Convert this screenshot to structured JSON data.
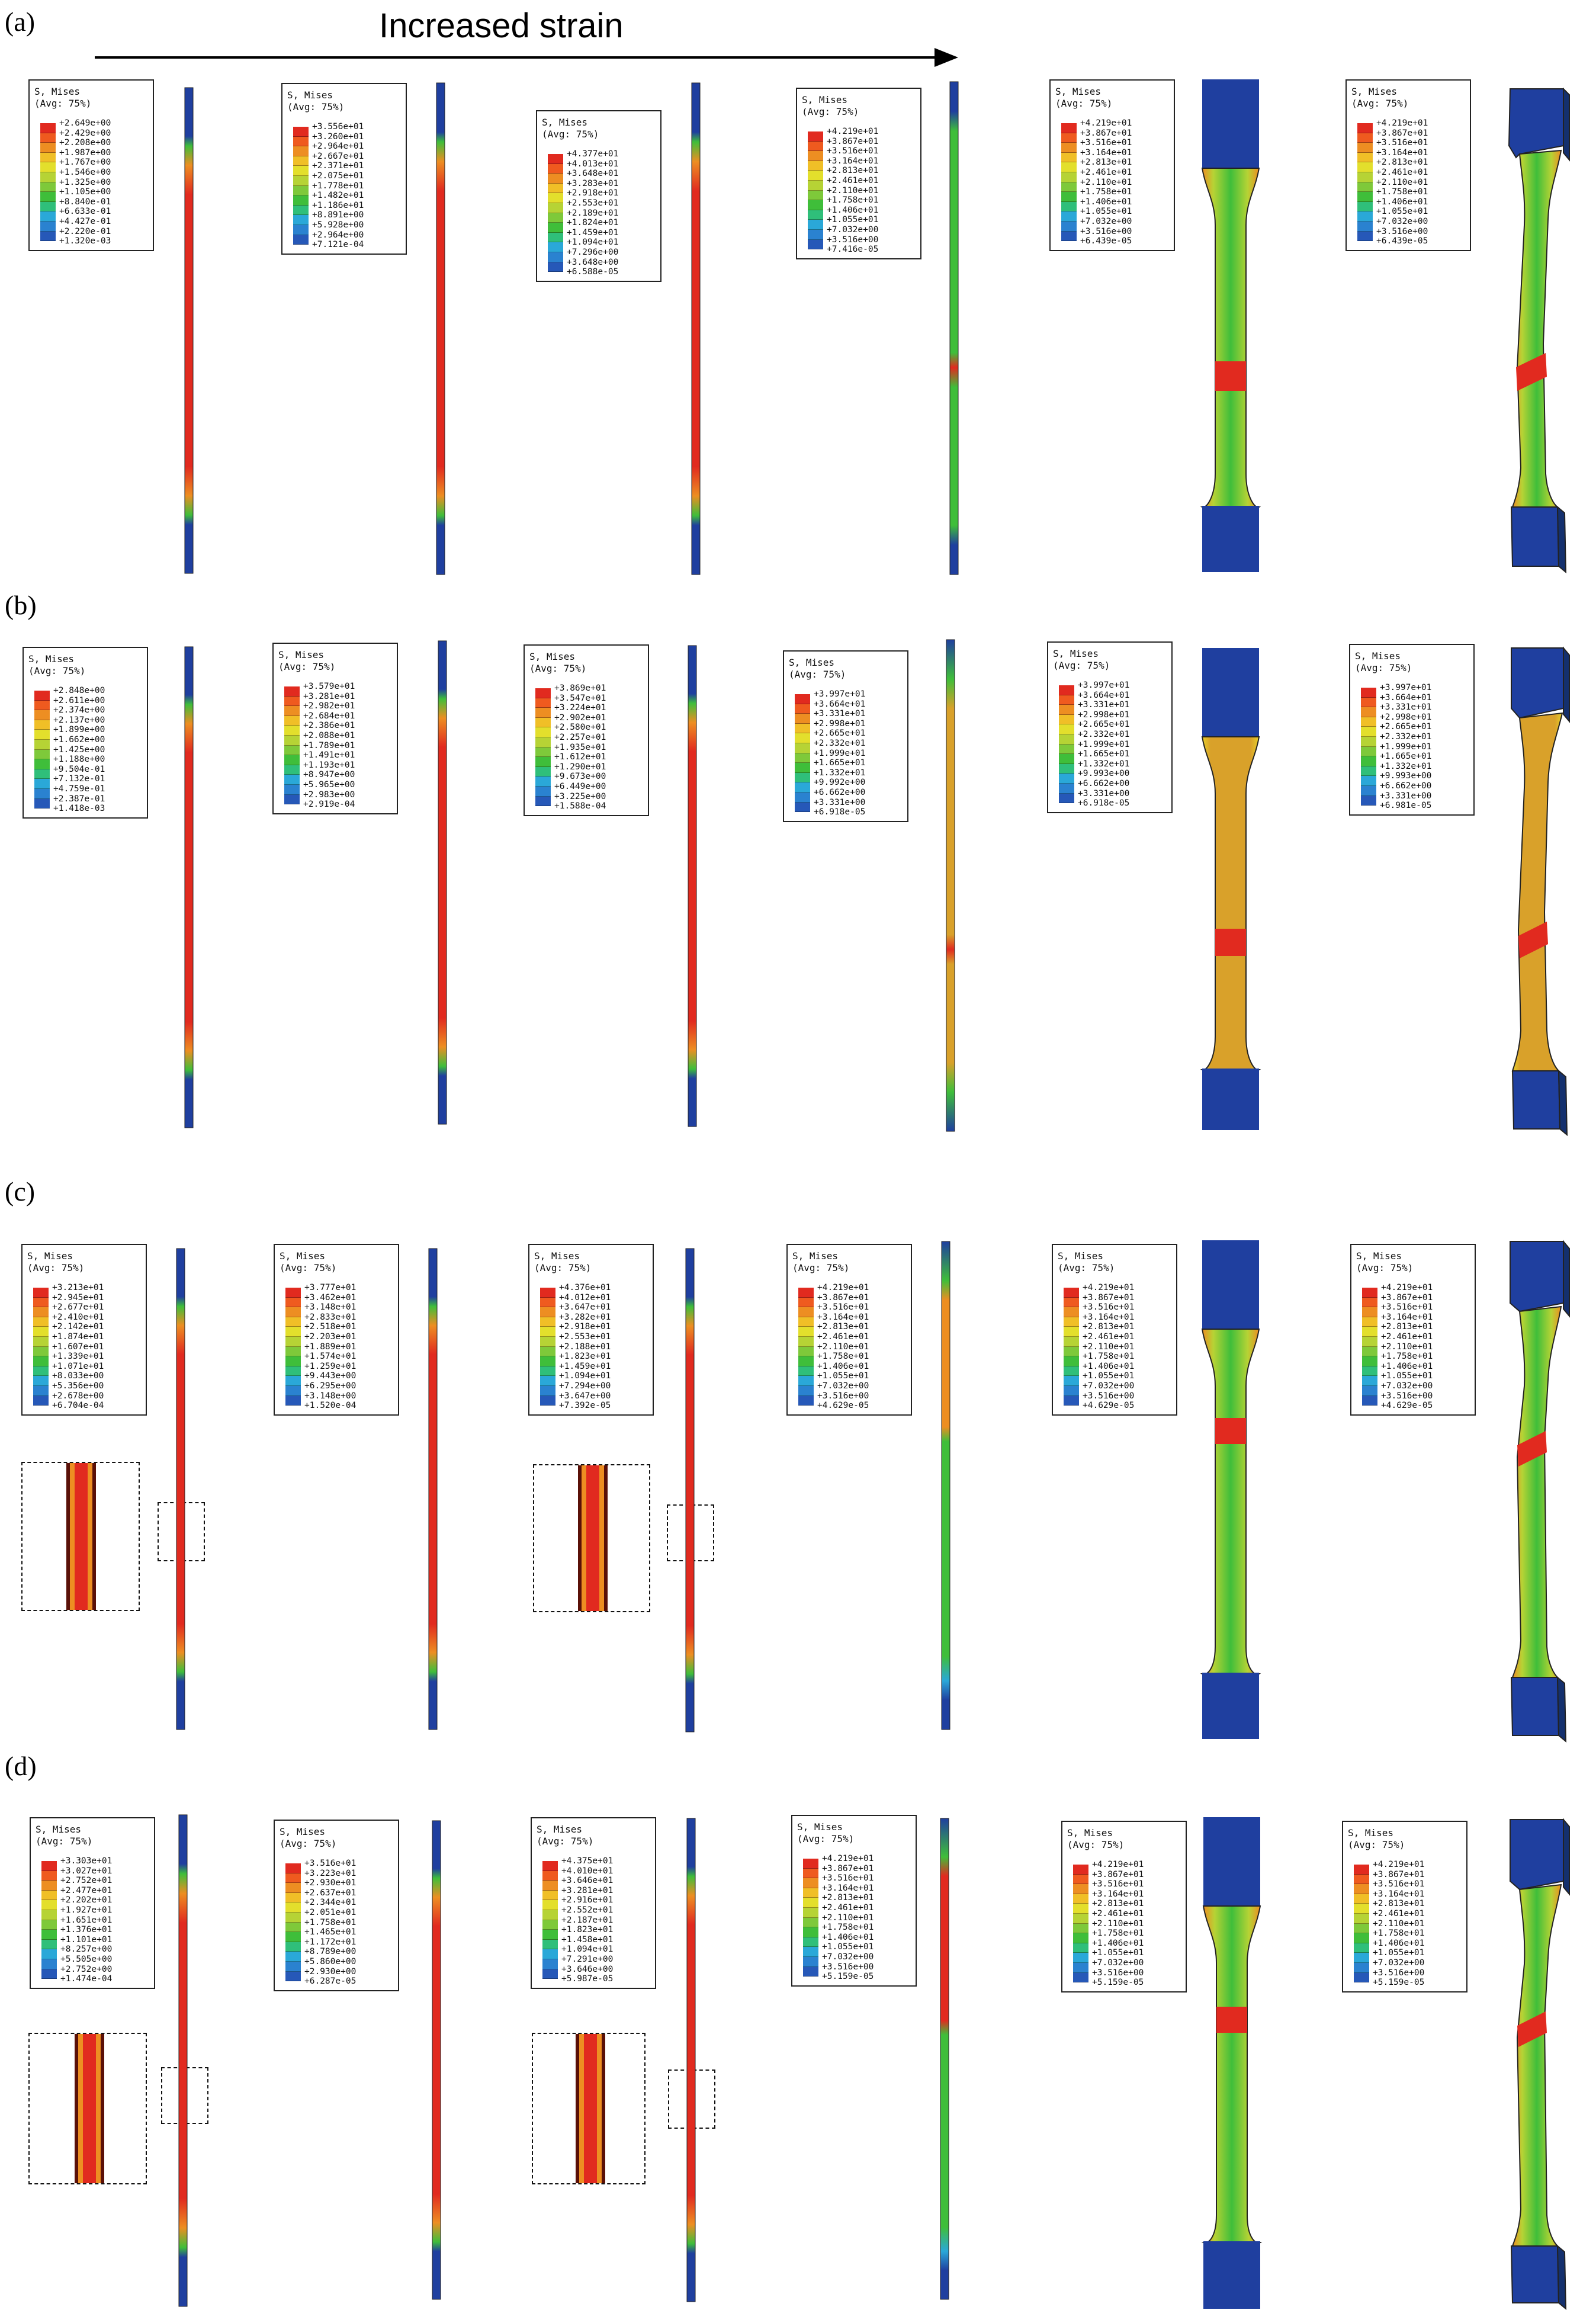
{
  "header": {
    "title": "Increased strain"
  },
  "legend_header": {
    "line1": "S, Mises",
    "line2": "(Avg: 75%)"
  },
  "colors": {
    "blue": "#1f3f9f",
    "cyan": "#2aa8d8",
    "green": "#3fbe3a",
    "yellowgreen": "#b6d335",
    "yellow": "#e8cf2c",
    "orange": "#ed8e22",
    "red": "#e12a1f",
    "darkred": "#b81a14",
    "tan": "#d9a12a"
  },
  "rows": [
    {
      "label": "(a)",
      "legends": [
        [
          "+2.649e+00",
          "+2.429e+00",
          "+2.208e+00",
          "+1.987e+00",
          "+1.767e+00",
          "+1.546e+00",
          "+1.325e+00",
          "+1.105e+00",
          "+8.840e-01",
          "+6.633e-01",
          "+4.427e-01",
          "+2.220e-01",
          "+1.320e-03"
        ],
        [
          "+3.556e+01",
          "+3.260e+01",
          "+2.964e+01",
          "+2.667e+01",
          "+2.371e+01",
          "+2.075e+01",
          "+1.778e+01",
          "+1.482e+01",
          "+1.186e+01",
          "+8.891e+00",
          "+5.928e+00",
          "+2.964e+00",
          "+7.121e-04"
        ],
        [
          "+4.377e+01",
          "+4.013e+01",
          "+3.648e+01",
          "+3.283e+01",
          "+2.918e+01",
          "+2.553e+01",
          "+2.189e+01",
          "+1.824e+01",
          "+1.459e+01",
          "+1.094e+01",
          "+7.296e+00",
          "+3.648e+00",
          "+6.588e-05"
        ],
        [
          "+4.219e+01",
          "+3.867e+01",
          "+3.516e+01",
          "+3.164e+01",
          "+2.813e+01",
          "+2.461e+01",
          "+2.110e+01",
          "+1.758e+01",
          "+1.406e+01",
          "+1.055e+01",
          "+7.032e+00",
          "+3.516e+00",
          "+7.416e-05"
        ],
        [
          "+4.219e+01",
          "+3.867e+01",
          "+3.516e+01",
          "+3.164e+01",
          "+2.813e+01",
          "+2.461e+01",
          "+2.110e+01",
          "+1.758e+01",
          "+1.406e+01",
          "+1.055e+01",
          "+7.032e+00",
          "+3.516e+00",
          "+6.439e-05"
        ],
        [
          "+4.219e+01",
          "+3.867e+01",
          "+3.516e+01",
          "+3.164e+01",
          "+2.813e+01",
          "+2.461e+01",
          "+2.110e+01",
          "+1.758e+01",
          "+1.406e+01",
          "+1.055e+01",
          "+7.032e+00",
          "+3.516e+00",
          "+6.439e-05"
        ]
      ]
    },
    {
      "label": "(b)",
      "legends": [
        [
          "+2.848e+00",
          "+2.611e+00",
          "+2.374e+00",
          "+2.137e+00",
          "+1.899e+00",
          "+1.662e+00",
          "+1.425e+00",
          "+1.188e+00",
          "+9.504e-01",
          "+7.132e-01",
          "+4.759e-01",
          "+2.387e-01",
          "+1.418e-03"
        ],
        [
          "+3.579e+01",
          "+3.281e+01",
          "+2.982e+01",
          "+2.684e+01",
          "+2.386e+01",
          "+2.088e+01",
          "+1.789e+01",
          "+1.491e+01",
          "+1.193e+01",
          "+8.947e+00",
          "+5.965e+00",
          "+2.983e+00",
          "+2.919e-04"
        ],
        [
          "+3.869e+01",
          "+3.547e+01",
          "+3.224e+01",
          "+2.902e+01",
          "+2.580e+01",
          "+2.257e+01",
          "+1.935e+01",
          "+1.612e+01",
          "+1.290e+01",
          "+9.673e+00",
          "+6.449e+00",
          "+3.225e+00",
          "+1.588e-04"
        ],
        [
          "+3.997e+01",
          "+3.664e+01",
          "+3.331e+01",
          "+2.998e+01",
          "+2.665e+01",
          "+2.332e+01",
          "+1.999e+01",
          "+1.665e+01",
          "+1.332e+01",
          "+9.992e+00",
          "+6.662e+00",
          "+3.331e+00",
          "+6.918e-05"
        ],
        [
          "+3.997e+01",
          "+3.664e+01",
          "+3.331e+01",
          "+2.998e+01",
          "+2.665e+01",
          "+2.332e+01",
          "+1.999e+01",
          "+1.665e+01",
          "+1.332e+01",
          "+9.993e+00",
          "+6.662e+00",
          "+3.331e+00",
          "+6.918e-05"
        ],
        [
          "+3.997e+01",
          "+3.664e+01",
          "+3.331e+01",
          "+2.998e+01",
          "+2.665e+01",
          "+2.332e+01",
          "+1.999e+01",
          "+1.665e+01",
          "+1.332e+01",
          "+9.993e+00",
          "+6.662e+00",
          "+3.331e+00",
          "+6.981e-05"
        ]
      ]
    },
    {
      "label": "(c)",
      "legends": [
        [
          "+3.213e+01",
          "+2.945e+01",
          "+2.677e+01",
          "+2.410e+01",
          "+2.142e+01",
          "+1.874e+01",
          "+1.607e+01",
          "+1.339e+01",
          "+1.071e+01",
          "+8.033e+00",
          "+5.356e+00",
          "+2.678e+00",
          "+6.704e-04"
        ],
        [
          "+3.777e+01",
          "+3.462e+01",
          "+3.148e+01",
          "+2.833e+01",
          "+2.518e+01",
          "+2.203e+01",
          "+1.889e+01",
          "+1.574e+01",
          "+1.259e+01",
          "+9.443e+00",
          "+6.295e+00",
          "+3.148e+00",
          "+1.520e-04"
        ],
        [
          "+4.376e+01",
          "+4.012e+01",
          "+3.647e+01",
          "+3.282e+01",
          "+2.918e+01",
          "+2.553e+01",
          "+2.188e+01",
          "+1.823e+01",
          "+1.459e+01",
          "+1.094e+01",
          "+7.294e+00",
          "+3.647e+00",
          "+7.392e-05"
        ],
        [
          "+4.219e+01",
          "+3.867e+01",
          "+3.516e+01",
          "+3.164e+01",
          "+2.813e+01",
          "+2.461e+01",
          "+2.110e+01",
          "+1.758e+01",
          "+1.406e+01",
          "+1.055e+01",
          "+7.032e+00",
          "+3.516e+00",
          "+4.629e-05"
        ],
        [
          "+4.219e+01",
          "+3.867e+01",
          "+3.516e+01",
          "+3.164e+01",
          "+2.813e+01",
          "+2.461e+01",
          "+2.110e+01",
          "+1.758e+01",
          "+1.406e+01",
          "+1.055e+01",
          "+7.032e+00",
          "+3.516e+00",
          "+4.629e-05"
        ],
        [
          "+4.219e+01",
          "+3.867e+01",
          "+3.516e+01",
          "+3.164e+01",
          "+2.813e+01",
          "+2.461e+01",
          "+2.110e+01",
          "+1.758e+01",
          "+1.406e+01",
          "+1.055e+01",
          "+7.032e+00",
          "+3.516e+00",
          "+4.629e-05"
        ]
      ]
    },
    {
      "label": "(d)",
      "legends": [
        [
          "+3.303e+01",
          "+3.027e+01",
          "+2.752e+01",
          "+2.477e+01",
          "+2.202e+01",
          "+1.927e+01",
          "+1.651e+01",
          "+1.376e+01",
          "+1.101e+01",
          "+8.257e+00",
          "+5.505e+00",
          "+2.752e+00",
          "+1.474e-04"
        ],
        [
          "+3.516e+01",
          "+3.223e+01",
          "+2.930e+01",
          "+2.637e+01",
          "+2.344e+01",
          "+2.051e+01",
          "+1.758e+01",
          "+1.465e+01",
          "+1.172e+01",
          "+8.789e+00",
          "+5.860e+00",
          "+2.930e+00",
          "+6.287e-05"
        ],
        [
          "+4.375e+01",
          "+4.010e+01",
          "+3.646e+01",
          "+3.281e+01",
          "+2.916e+01",
          "+2.552e+01",
          "+2.187e+01",
          "+1.823e+01",
          "+1.458e+01",
          "+1.094e+01",
          "+7.291e+00",
          "+3.646e+00",
          "+5.987e-05"
        ],
        [
          "+4.219e+01",
          "+3.867e+01",
          "+3.516e+01",
          "+3.164e+01",
          "+2.813e+01",
          "+2.461e+01",
          "+2.110e+01",
          "+1.758e+01",
          "+1.406e+01",
          "+1.055e+01",
          "+7.032e+00",
          "+3.516e+00",
          "+5.159e-05"
        ],
        [
          "+4.219e+01",
          "+3.867e+01",
          "+3.516e+01",
          "+3.164e+01",
          "+2.813e+01",
          "+2.461e+01",
          "+2.110e+01",
          "+1.758e+01",
          "+1.406e+01",
          "+1.055e+01",
          "+7.032e+00",
          "+3.516e+00",
          "+5.159e-05"
        ],
        [
          "+4.219e+01",
          "+3.867e+01",
          "+3.516e+01",
          "+3.164e+01",
          "+2.813e+01",
          "+2.461e+01",
          "+2.110e+01",
          "+1.758e+01",
          "+1.406e+01",
          "+1.055e+01",
          "+7.032e+00",
          "+3.516e+00",
          "+5.159e-05"
        ]
      ]
    }
  ]
}
